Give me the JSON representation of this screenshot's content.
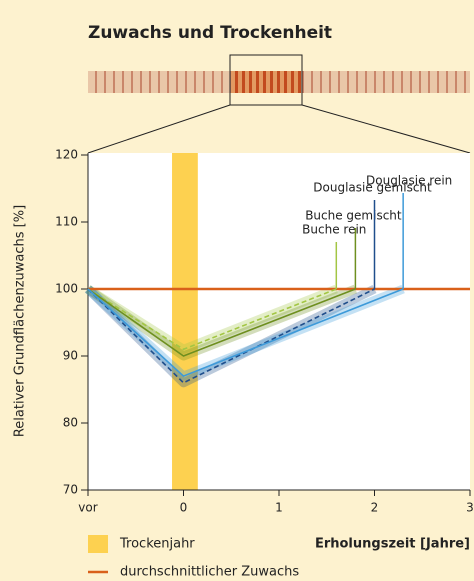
{
  "chart_data": {
    "type": "line",
    "title": "Zuwachs und Trockenheit",
    "ylabel": "Relativer Grundflächenzuwachs [%]",
    "xlabel": "Erholungszeit [Jahre]",
    "xlim": [
      -1,
      3
    ],
    "xticks": [
      {
        "value": -1,
        "label": "vor"
      },
      0,
      1,
      2,
      3
    ],
    "ylim": [
      70,
      120
    ],
    "yticks": [
      70,
      80,
      90,
      100,
      110,
      120
    ],
    "drought_year": {
      "label": "Trockenjahr",
      "xmin": -0.12,
      "xmax": 0.15,
      "color": "#fdd150"
    },
    "reference_line": {
      "label": "durchschnittlicher Zuwachs",
      "value": 100,
      "color": "#d9601a"
    },
    "series": [
      {
        "name": "Buche rein",
        "color": "#a3c644",
        "dashed": true,
        "x": [
          -1,
          0,
          1.6
        ],
        "values": [
          100,
          91,
          100
        ]
      },
      {
        "name": "Buche gemischt",
        "color": "#6e8f1f",
        "dashed": false,
        "x": [
          -1,
          0,
          1.8
        ],
        "values": [
          100,
          90,
          100
        ]
      },
      {
        "name": "Douglasie gemischt",
        "color": "#1f4e8c",
        "dashed": true,
        "x": [
          -1,
          0,
          2
        ],
        "values": [
          100,
          86,
          100
        ]
      },
      {
        "name": "Douglasie rein",
        "color": "#3d9ad9",
        "dashed": false,
        "x": [
          -1,
          0,
          2.3
        ],
        "values": [
          100,
          87,
          100
        ]
      }
    ]
  }
}
